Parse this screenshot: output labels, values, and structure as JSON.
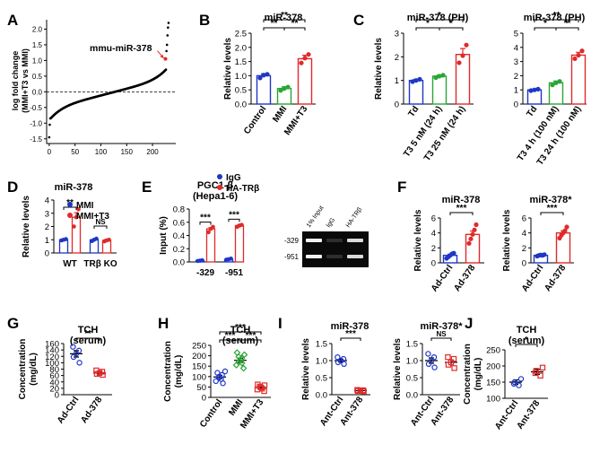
{
  "colors": {
    "blue": "#1f36c7",
    "green": "#2aa636",
    "red": "#e02a2a",
    "black": "#000000"
  },
  "chart_data": [
    {
      "panel": "A",
      "type": "scatter",
      "label": "A",
      "ylabel1": "log fold change",
      "ylabel2": "(MMI+T3 vs MMI)",
      "xticks": [
        "0",
        "50",
        "100",
        "150",
        "200"
      ],
      "yticks": [
        "-1.5",
        "-1.0",
        "-0.5",
        "0.0",
        "0.5",
        "1.0",
        "1.5",
        "2.0"
      ],
      "xlim": [
        -5,
        245
      ],
      "ylim": [
        -1.65,
        2.3
      ],
      "annotation": "mmu-miR-378",
      "highlight": {
        "x": 225,
        "y": 1.05
      }
    },
    {
      "panel": "B",
      "type": "bar",
      "label": "B",
      "title": "miR-378",
      "ylabel": "Relative levels",
      "categories": [
        "Control",
        "MMI",
        "MMI+T3"
      ],
      "values": [
        1.0,
        0.55,
        1.6
      ],
      "errors": [
        0.07,
        0.06,
        0.12
      ],
      "points": [
        [
          0.92,
          1.02,
          1.05
        ],
        [
          0.48,
          0.55,
          0.6
        ],
        [
          1.45,
          1.62,
          1.75
        ]
      ],
      "ylim": [
        0,
        2.5
      ],
      "yticks": [
        "0.0",
        "0.5",
        "1.0",
        "1.5",
        "2.0",
        "2.5"
      ],
      "sig": [
        {
          "a": 0,
          "b": 1,
          "text": "**",
          "lvl": 0
        },
        {
          "a": 1,
          "b": 2,
          "text": "**",
          "lvl": 0
        },
        {
          "a": 0,
          "b": 2,
          "text": "**",
          "lvl": 1
        }
      ]
    },
    {
      "panel": "C1",
      "type": "bar",
      "label": "C",
      "title": "miR-378 (PH)",
      "ylabel": "Relative levels",
      "categories": [
        "Td",
        "T3 5 nM (24 h)",
        "T3 25 nM (24 h)"
      ],
      "values": [
        1.0,
        1.18,
        2.1
      ],
      "errors": [
        0.05,
        0.05,
        0.25
      ],
      "points": [
        [
          0.95,
          1.0,
          1.05
        ],
        [
          1.12,
          1.18,
          1.22
        ],
        [
          1.75,
          2.05,
          2.5
        ]
      ],
      "ylim": [
        0,
        3
      ],
      "yticks": [
        "0",
        "1",
        "2",
        "3"
      ],
      "sig": [
        {
          "a": 0,
          "b": 1,
          "text": "*",
          "lvl": 0
        },
        {
          "a": 1,
          "b": 2,
          "text": "*",
          "lvl": 0
        },
        {
          "a": 0,
          "b": 2,
          "text": "*",
          "lvl": 1
        }
      ]
    },
    {
      "panel": "C2",
      "type": "bar",
      "title": "miR-378 (PH)",
      "categories": [
        "Td",
        "T3 4 h (100 nM)",
        "T3 24 h (100 nM)"
      ],
      "values": [
        1.0,
        1.5,
        3.45
      ],
      "errors": [
        0.05,
        0.12,
        0.2
      ],
      "points": [
        [
          0.95,
          1.0,
          1.05
        ],
        [
          1.35,
          1.5,
          1.6
        ],
        [
          3.2,
          3.45,
          3.75
        ]
      ],
      "ylim": [
        0,
        5
      ],
      "yticks": [
        "0",
        "1",
        "2",
        "3",
        "4",
        "5"
      ],
      "sig": [
        {
          "a": 0,
          "b": 1,
          "text": "*",
          "lvl": 0
        },
        {
          "a": 1,
          "b": 2,
          "text": "**",
          "lvl": 0
        },
        {
          "a": 0,
          "b": 2,
          "text": "**",
          "lvl": 1
        }
      ]
    },
    {
      "panel": "D",
      "type": "bar",
      "label": "D",
      "title": "miR-378",
      "ylabel": "Relative levels",
      "categories": [
        "WT",
        "TRβ KO"
      ],
      "series": [
        {
          "name": "MMI",
          "values": [
            1.0,
            1.0
          ],
          "errors": [
            0.05,
            0.06
          ]
        },
        {
          "name": "MMI+T3",
          "values": [
            2.7,
            0.95
          ],
          "errors": [
            0.35,
            0.08
          ]
        }
      ],
      "points": [
        [
          [
            0.95,
            1.0,
            1.05
          ],
          [
            0.9,
            1.0,
            1.08
          ]
        ],
        [
          [
            2.0,
            2.7,
            3.3
          ],
          [
            0.88,
            0.95,
            1.0
          ]
        ]
      ],
      "ylim": [
        0,
        4
      ],
      "yticks": [
        "0",
        "1",
        "2",
        "3",
        "4"
      ],
      "sig": [
        "**",
        "NS"
      ]
    },
    {
      "panel": "E",
      "type": "bar",
      "label": "E",
      "title1": "PGC1-β",
      "title2": "(Hepa1-6)",
      "ylabel": "Input (%)",
      "categories": [
        "-329",
        "-951"
      ],
      "series": [
        {
          "name": "IgG",
          "values": [
            0.02,
            0.04
          ],
          "errors": [
            0.004,
            0.006
          ]
        },
        {
          "name": "HA-TRβ",
          "values": [
            0.5,
            0.55
          ],
          "errors": [
            0.02,
            0.015
          ]
        }
      ],
      "points": [
        [
          [
            0.015,
            0.02,
            0.025
          ],
          [
            0.035,
            0.04,
            0.05
          ]
        ],
        [
          [
            0.45,
            0.5,
            0.53
          ],
          [
            0.53,
            0.55,
            0.56
          ]
        ]
      ],
      "ylim": [
        0,
        0.8
      ],
      "yticks": [
        "0.0",
        "0.2",
        "0.4",
        "0.6",
        "0.8"
      ],
      "sig": [
        "***",
        "***"
      ],
      "gel": {
        "lanes": [
          "1% Input",
          "IgG",
          "HA-TRβ"
        ],
        "rows": [
          "-329",
          "-951"
        ]
      }
    },
    {
      "panel": "F1",
      "type": "bar",
      "label": "F",
      "title": "miR-378",
      "ylabel": "Relative levels",
      "categories": [
        "Ad-Ctrl",
        "Ad-378"
      ],
      "values": [
        1.0,
        3.8
      ],
      "errors": [
        0.15,
        0.45
      ],
      "points": [
        [
          0.6,
          0.8,
          1.0,
          1.2,
          1.3
        ],
        [
          2.6,
          3.2,
          3.8,
          4.4,
          5.1
        ]
      ],
      "ylim": [
        0,
        6
      ],
      "yticks": [
        "0",
        "2",
        "4",
        "6"
      ],
      "sig": [
        {
          "a": 0,
          "b": 1,
          "text": "***",
          "lvl": 0
        }
      ]
    },
    {
      "panel": "F2",
      "type": "bar",
      "title": "miR-378*",
      "ylabel": "Relative levels",
      "categories": [
        "Ad-Ctrl",
        "Ad-378"
      ],
      "values": [
        1.0,
        4.0
      ],
      "errors": [
        0.05,
        0.3
      ],
      "points": [
        [
          0.9,
          1.0,
          1.05,
          1.0,
          1.1
        ],
        [
          3.3,
          3.7,
          4.0,
          4.3,
          4.8
        ]
      ],
      "ylim": [
        0,
        6
      ],
      "yticks": [
        "0",
        "2",
        "4",
        "6"
      ],
      "sig": [
        {
          "a": 0,
          "b": 1,
          "text": "***",
          "lvl": 0
        }
      ]
    },
    {
      "panel": "G",
      "type": "dot",
      "label": "G",
      "title1": "TCH",
      "title2": "(serum)",
      "ylabel": "Concentration",
      "ylabel2": "(mg/dL)",
      "categories": [
        "Ad-Ctrl",
        "Ad-378"
      ],
      "values": [
        128,
        68
      ],
      "errors": [
        10,
        3
      ],
      "points": [
        [
          100,
          118,
          128,
          138,
          150
        ],
        [
          62,
          65,
          68,
          72,
          76
        ]
      ],
      "ylim": [
        0,
        160
      ],
      "yticks": [
        "0",
        "20",
        "40",
        "60",
        "80",
        "100",
        "120",
        "140",
        "160"
      ],
      "sig": [
        {
          "a": 0,
          "b": 1,
          "text": "**",
          "lvl": 0
        }
      ]
    },
    {
      "panel": "H",
      "type": "dot",
      "label": "H",
      "title1": "TCH",
      "title2": "(serum)",
      "ylabel": "Concentration",
      "ylabel2": "(mg/dL)",
      "categories": [
        "Control",
        "MMI",
        "MMI+T3"
      ],
      "values": [
        98,
        178,
        48
      ],
      "errors": [
        8,
        10,
        5
      ],
      "points": [
        [
          68,
          78,
          88,
          95,
          100,
          108,
          118,
          125
        ],
        [
          140,
          155,
          165,
          172,
          180,
          188,
          195,
          205,
          215
        ],
        [
          30,
          38,
          42,
          48,
          52,
          58,
          62
        ]
      ],
      "ylim": [
        0,
        250
      ],
      "yticks": [
        "0",
        "50",
        "100",
        "150",
        "200",
        "250"
      ],
      "sig": [
        {
          "a": 0,
          "b": 1,
          "text": "***",
          "lvl": 0
        },
        {
          "a": 1,
          "b": 2,
          "text": "***",
          "lvl": 0
        },
        {
          "a": 0,
          "b": 2,
          "text": "***",
          "lvl": 1
        }
      ]
    },
    {
      "panel": "I1",
      "type": "dot",
      "label": "I",
      "title": "miR-378",
      "ylabel": "Relative levels",
      "categories": [
        "Ant-Ctrl",
        "Ant-378"
      ],
      "values": [
        1.0,
        0.12
      ],
      "errors": [
        0.04,
        0.01
      ],
      "points": [
        [
          0.9,
          0.95,
          1.0,
          1.05,
          1.1
        ],
        [
          0.1,
          0.11,
          0.12,
          0.13,
          0.14
        ]
      ],
      "ylim": [
        0,
        1.5
      ],
      "yticks": [
        "0.0",
        "0.5",
        "1.0",
        "1.5"
      ],
      "sig": [
        {
          "a": 0,
          "b": 1,
          "text": "***",
          "lvl": 0
        }
      ]
    },
    {
      "panel": "I2",
      "type": "dot",
      "title": "miR-378*",
      "ylabel": "Relative levels",
      "categories": [
        "Ant-Ctrl",
        "Ant-378"
      ],
      "values": [
        1.0,
        0.95
      ],
      "errors": [
        0.08,
        0.07
      ],
      "points": [
        [
          0.8,
          0.9,
          1.0,
          1.1,
          1.2
        ],
        [
          0.78,
          0.88,
          0.95,
          1.05,
          1.1
        ]
      ],
      "ylim": [
        0,
        1.5
      ],
      "yticks": [
        "0.0",
        "0.5",
        "1.0",
        "1.5"
      ],
      "sig": [
        {
          "a": 0,
          "b": 1,
          "text": "NS",
          "lvl": 0
        }
      ]
    },
    {
      "panel": "J",
      "type": "dot",
      "label": "J",
      "title1": "TCH",
      "title2": "(serum)",
      "ylabel": "Concentration",
      "ylabel2": "(mg/dL)",
      "categories": [
        "Ant-Ctrl",
        "Ant-378"
      ],
      "values": [
        150,
        182
      ],
      "errors": [
        7,
        8
      ],
      "points": [
        [
          140,
          145,
          150,
          160
        ],
        [
          170,
          178,
          185,
          195
        ]
      ],
      "ylim": [
        100,
        250
      ],
      "yticks": [
        "100",
        "150",
        "200",
        "250"
      ],
      "sig": [
        {
          "a": 0,
          "b": 1,
          "text": "*",
          "lvl": 0
        }
      ]
    }
  ]
}
